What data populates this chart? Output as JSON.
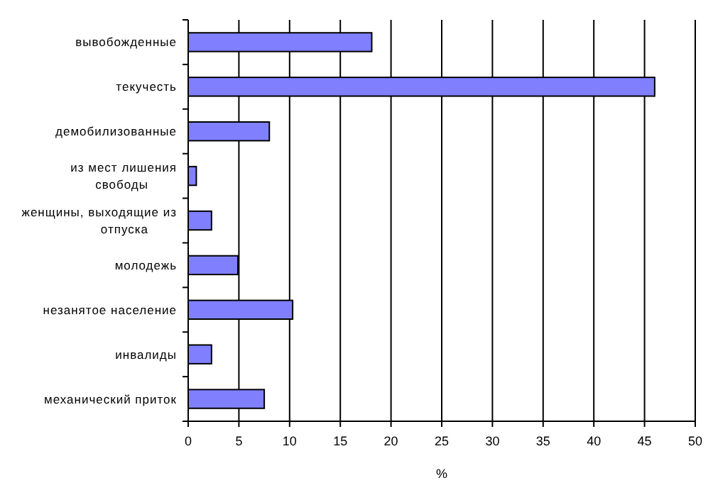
{
  "chart_data": {
    "type": "bar",
    "orientation": "horizontal",
    "xlabel": "%",
    "categories": [
      "вывобожденные",
      "текучесть",
      "демобилизованные",
      "из мест лишения свободы",
      "женщины, выходящие из отпуска",
      "молодежь",
      "незанятое население",
      "инвалиды",
      "механический приток"
    ],
    "values": [
      18.1,
      46,
      8,
      0.8,
      2.3,
      4.9,
      10.3,
      2.3,
      7.5
    ],
    "color": "#8080ff",
    "xlim": [
      0,
      50
    ],
    "xticks": [
      0,
      5,
      10,
      15,
      20,
      25,
      30,
      35,
      40,
      45,
      50
    ],
    "grid": "x"
  }
}
